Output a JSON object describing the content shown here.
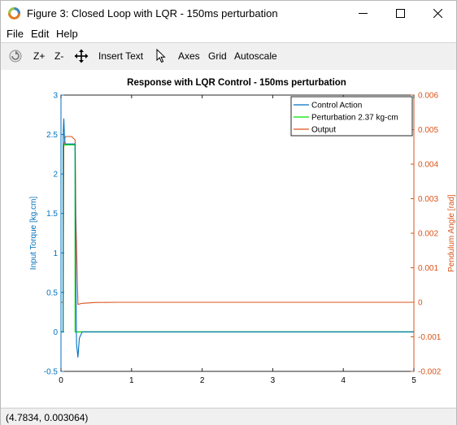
{
  "window": {
    "title": "Figure 3: Closed Loop with LQR - 150ms perturbation"
  },
  "menu": {
    "file": "File",
    "edit": "Edit",
    "help": "Help"
  },
  "toolbar": {
    "zoom_in": "Z+",
    "zoom_out": "Z-",
    "insert_text": "Insert Text",
    "axes": "Axes",
    "grid": "Grid",
    "autoscale": "Autoscale"
  },
  "status": {
    "coords": "(4.7834, 0.003064)"
  },
  "colors": {
    "left_axis": "#0072bd",
    "right_axis": "#d95319",
    "control": "#0072bd",
    "perturbation": "#00dd00",
    "output": "#d95319"
  },
  "chart_data": {
    "type": "line",
    "title": "Response with LQR Control - 150ms perturbation",
    "xlabel": "",
    "ylabel": "Input Torque [kg.cm]",
    "ylabel_right": "Pendulum Angle [rad]",
    "xlim": [
      0,
      5
    ],
    "ylim": [
      -0.5,
      3
    ],
    "ylim_right": [
      -0.002,
      0.006
    ],
    "xticks": [
      "0",
      "1",
      "2",
      "3",
      "4",
      "5"
    ],
    "yticks": [
      "-0.5",
      "0",
      "0.5",
      "1",
      "1.5",
      "2",
      "2.5",
      "3"
    ],
    "yticks_right": [
      "-0.002",
      "-0.001",
      "0",
      "0.001",
      "0.002",
      "0.003",
      "0.004",
      "0.005",
      "0.006"
    ],
    "grid": false,
    "legend_position": "top-right",
    "series": [
      {
        "name": "Control Action",
        "axis": "left",
        "x": [
          0,
          0.03,
          0.031,
          0.04,
          0.05,
          0.06,
          0.07,
          0.08,
          0.1,
          0.15,
          0.2,
          0.21,
          0.22,
          0.24,
          0.26,
          0.3,
          0.4,
          0.6,
          1,
          2,
          3,
          4,
          5
        ],
        "y": [
          0,
          0,
          2.5,
          2.7,
          2.45,
          2.38,
          2.38,
          2.38,
          2.38,
          2.38,
          2.38,
          0.8,
          -0.15,
          -0.32,
          -0.08,
          0.0,
          0.0,
          0.0,
          0.0,
          0.0,
          0.0,
          0.0,
          0.0
        ]
      },
      {
        "name": "Perturbation 2.37 kg-cm",
        "axis": "left",
        "x": [
          0,
          0.03,
          0.031,
          0.2,
          0.201,
          5
        ],
        "y": [
          0,
          0,
          2.37,
          2.37,
          0,
          0
        ]
      },
      {
        "name": "Output",
        "axis": "right",
        "x": [
          0,
          0.03,
          0.04,
          0.06,
          0.1,
          0.15,
          0.2,
          0.21,
          0.24,
          0.3,
          0.5,
          0.8,
          1,
          1.5,
          2,
          3,
          4,
          5
        ],
        "y": [
          0,
          0,
          0.0045,
          0.0048,
          0.0048,
          0.0048,
          0.0047,
          0.0025,
          -6e-05,
          -3e-05,
          -5e-06,
          0,
          0,
          0,
          0,
          0,
          0,
          0
        ]
      }
    ]
  }
}
